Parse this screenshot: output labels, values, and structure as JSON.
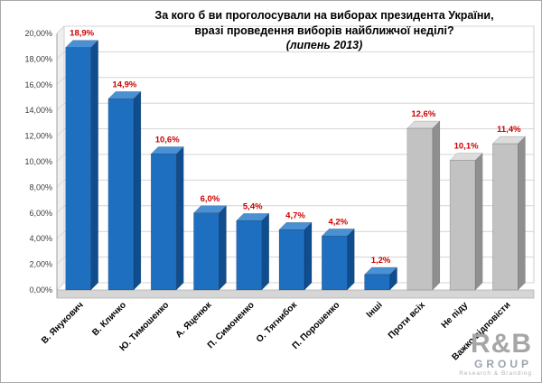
{
  "chart_data": {
    "type": "bar",
    "style": "3d-column",
    "title_lines": [
      "За кого б ви проголосували на виборах президента України,",
      "вразі проведення виборів найближчої неділі?",
      "(липень 2013)"
    ],
    "categories": [
      "В. Янукович",
      "В. Кличко",
      "Ю. Тимошенко",
      "А. Яценюк",
      "П. Симоненко",
      "О. Тягнибок",
      "П. Порошенко",
      "Інші",
      "Проти всіх",
      "Не піду",
      "Важко відповісти"
    ],
    "values": [
      18.9,
      14.9,
      10.6,
      6.0,
      5.4,
      4.7,
      4.2,
      1.2,
      12.6,
      10.1,
      11.4
    ],
    "value_labels": [
      "18,9%",
      "14,9%",
      "10,6%",
      "6,0%",
      "5,4%",
      "4,7%",
      "4,2%",
      "1,2%",
      "12,6%",
      "10,1%",
      "11,4%"
    ],
    "bar_colors": [
      "blue",
      "blue",
      "blue",
      "blue",
      "blue",
      "blue",
      "blue",
      "blue",
      "gray",
      "gray",
      "gray"
    ],
    "y_ticks": [
      "0,00%",
      "2,00%",
      "4,00%",
      "6,00%",
      "8,00%",
      "10,00%",
      "12,00%",
      "14,00%",
      "16,00%",
      "18,00%",
      "20,00%"
    ],
    "ylim": [
      0,
      20
    ],
    "grid": true,
    "legend": "none",
    "colors": {
      "blue_front": "#1e6fc0",
      "blue_top": "#4a90d4",
      "blue_side": "#0f4d8f",
      "gray_front": "#c2c2c2",
      "gray_top": "#dcdcdc",
      "gray_side": "#8f8f8f",
      "label_red": "#cc0000",
      "gridline": "#d4d4d4",
      "axis": "#a0a0a0",
      "floor": "#d6d6d6"
    }
  },
  "logo": {
    "line1": "R&B",
    "line2": "GROUP",
    "line3": "Research & Branding"
  }
}
